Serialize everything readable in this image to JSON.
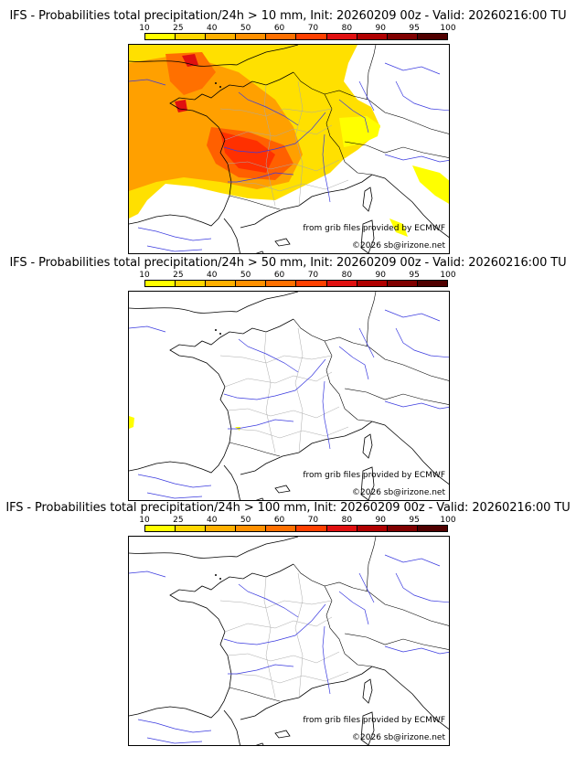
{
  "colorbar": {
    "ticks": [
      "10",
      "25",
      "40",
      "50",
      "60",
      "70",
      "80",
      "90",
      "95",
      "100"
    ],
    "colors": [
      "#ffff00",
      "#ffd700",
      "#ffb000",
      "#ff9000",
      "#ff7000",
      "#ff4000",
      "#e01010",
      "#b00000",
      "#800000",
      "#500000"
    ]
  },
  "panels": [
    {
      "title": "IFS - Probabilities total precipitation/24h > 10 mm, Init: 20260209 00z - Valid: 20260216:00 TU",
      "credit_source": "from grib files provided by ECMWF",
      "credit_copyright": "©2026 sb@irizone.net"
    },
    {
      "title": "IFS - Probabilities total precipitation/24h > 50 mm, Init: 20260209 00z - Valid: 20260216:00 TU",
      "credit_source": "from grib files provided by ECMWF",
      "credit_copyright": "©2026 sb@irizone.net"
    },
    {
      "title": "IFS - Probabilities total precipitation/24h > 100 mm, Init: 20260209 00z - Valid: 20260216:00 TU",
      "credit_source": "from grib files provided by ECMWF",
      "credit_copyright": "©2026 sb@irizone.net"
    }
  ]
}
